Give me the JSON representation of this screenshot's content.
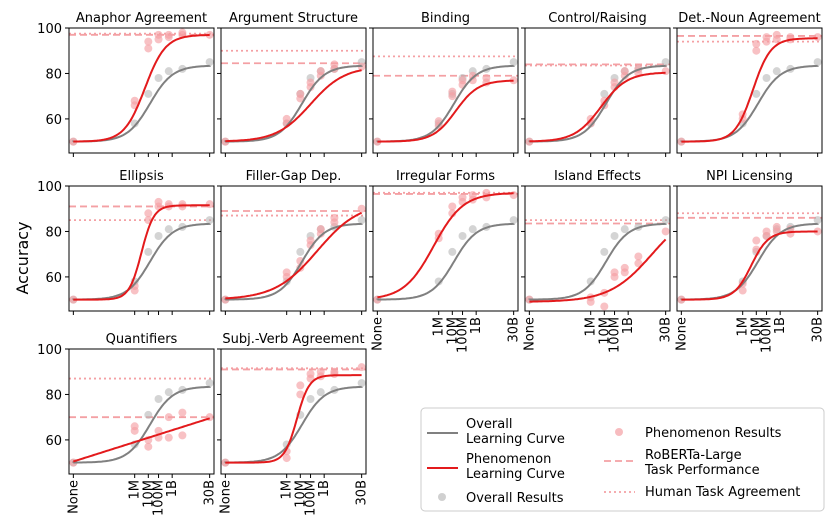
{
  "figure": {
    "ylabel": "Accuracy",
    "x_tick_labels": [
      "None",
      "1M",
      "10M",
      "100M",
      "1B",
      "30B"
    ],
    "y_tick_labels": [
      "60",
      "80",
      "100"
    ]
  },
  "legend": {
    "overall_curve": "Overall\nLearning Curve",
    "phenomenon_curve": "Phenomenon\nLearning Curve",
    "overall_results": "Overall Results",
    "phenomenon_results": "Phenomenon Results",
    "roberta": "RoBERTa-Large\nTask Performance",
    "human": "Human Task Agreement"
  },
  "colors": {
    "overall": "#808080",
    "phenomenon": "#e31a1c",
    "phenomenon_points": "#f4a0a4",
    "overall_points": "#b0b0b0",
    "roberta": "#f4a0a4",
    "human": "#f4a0a4"
  },
  "chart_data": [
    {
      "type": "line",
      "title": "Anaphor Agreement",
      "ylim": [
        45,
        100
      ],
      "x": [
        "None",
        "1M",
        "10M",
        "100M",
        "1B",
        "30B"
      ],
      "series": [
        {
          "name": "Phenomenon Learning Curve",
          "kind": "sigmoid",
          "low": 50,
          "high": 97,
          "mid": 2.1,
          "k": 3.3
        },
        {
          "name": "Phenomenon Results",
          "points": [
            [
              1.8,
              66
            ],
            [
              1.8,
              68
            ],
            [
              2.2,
              91
            ],
            [
              2.2,
              94
            ],
            [
              2.5,
              95
            ],
            [
              2.5,
              97
            ],
            [
              2.8,
              96
            ],
            [
              2.8,
              97
            ],
            [
              3.2,
              97
            ],
            [
              3.2,
              98
            ],
            [
              4,
              97
            ],
            [
              0,
              50
            ]
          ]
        }
      ],
      "roberta": 97,
      "human": 97.5,
      "xtick_labels_visible": false
    },
    {
      "type": "line",
      "title": "Argument Structure",
      "ylim": [
        45,
        100
      ],
      "x": [
        "None",
        "1M",
        "10M",
        "100M",
        "1B",
        "30B"
      ],
      "series": [
        {
          "name": "Phenomenon Learning Curve",
          "kind": "sigmoid",
          "low": 50,
          "high": 83,
          "mid": 2.5,
          "k": 2.0
        },
        {
          "name": "Phenomenon Results",
          "points": [
            [
              1.8,
              58
            ],
            [
              1.8,
              60
            ],
            [
              2.2,
              69
            ],
            [
              2.2,
              71
            ],
            [
              2.5,
              74
            ],
            [
              2.5,
              76
            ],
            [
              2.8,
              79
            ],
            [
              2.8,
              81
            ],
            [
              3.2,
              82
            ],
            [
              3.2,
              84
            ],
            [
              4,
              83
            ],
            [
              0,
              50
            ]
          ]
        }
      ],
      "roberta": 84.5,
      "human": 90,
      "xtick_labels_visible": false
    },
    {
      "type": "line",
      "title": "Binding",
      "ylim": [
        45,
        100
      ],
      "x": [
        "None",
        "1M",
        "10M",
        "100M",
        "1B",
        "30B"
      ],
      "series": [
        {
          "name": "Phenomenon Learning Curve",
          "kind": "sigmoid",
          "low": 50,
          "high": 77,
          "mid": 2.3,
          "k": 3.0
        },
        {
          "name": "Phenomenon Results",
          "points": [
            [
              1.8,
              57
            ],
            [
              1.8,
              59
            ],
            [
              2.2,
              70
            ],
            [
              2.2,
              72
            ],
            [
              2.5,
              75
            ],
            [
              2.5,
              77
            ],
            [
              2.8,
              77
            ],
            [
              2.8,
              79
            ],
            [
              3.2,
              76
            ],
            [
              3.2,
              78
            ],
            [
              4,
              77
            ],
            [
              0,
              50
            ]
          ]
        }
      ],
      "roberta": 79,
      "human": 87.5,
      "xtick_labels_visible": false
    },
    {
      "type": "line",
      "title": "Control/Raising",
      "ylim": [
        45,
        100
      ],
      "x": [
        "None",
        "1M",
        "10M",
        "100M",
        "1B",
        "30B"
      ],
      "series": [
        {
          "name": "Phenomenon Learning Curve",
          "kind": "sigmoid",
          "low": 50,
          "high": 80.5,
          "mid": 2.1,
          "k": 2.6
        },
        {
          "name": "Phenomenon Results",
          "points": [
            [
              1.8,
              58
            ],
            [
              1.8,
              60
            ],
            [
              2.2,
              66
            ],
            [
              2.2,
              68
            ],
            [
              2.5,
              74
            ],
            [
              2.5,
              76
            ],
            [
              2.8,
              79
            ],
            [
              2.8,
              81
            ],
            [
              3.2,
              80
            ],
            [
              3.2,
              82
            ],
            [
              4,
              81
            ],
            [
              0,
              50
            ]
          ]
        }
      ],
      "roberta": 84,
      "human": 83.5,
      "xtick_labels_visible": false
    },
    {
      "type": "line",
      "title": "Det.-Noun Agreement",
      "ylim": [
        45,
        100
      ],
      "x": [
        "None",
        "1M",
        "10M",
        "100M",
        "1B",
        "30B"
      ],
      "series": [
        {
          "name": "Phenomenon Learning Curve",
          "kind": "sigmoid",
          "low": 50,
          "high": 95.5,
          "mid": 2.1,
          "k": 3.8
        },
        {
          "name": "Phenomenon Results",
          "points": [
            [
              1.8,
              60
            ],
            [
              1.8,
              62
            ],
            [
              2.2,
              90
            ],
            [
              2.2,
              93
            ],
            [
              2.5,
              94
            ],
            [
              2.5,
              96
            ],
            [
              2.8,
              95
            ],
            [
              2.8,
              97
            ],
            [
              3.2,
              95
            ],
            [
              3.2,
              96
            ],
            [
              4,
              96
            ],
            [
              0,
              50
            ]
          ]
        }
      ],
      "roberta": 96.5,
      "human": 94,
      "xtick_labels_visible": false
    },
    {
      "type": "line",
      "title": "Ellipsis",
      "ylim": [
        45,
        100
      ],
      "x": [
        "None",
        "1M",
        "10M",
        "100M",
        "1B",
        "30B"
      ],
      "series": [
        {
          "name": "Phenomenon Learning Curve",
          "kind": "sigmoid",
          "low": 50,
          "high": 91.5,
          "mid": 2.0,
          "k": 5.5
        },
        {
          "name": "Phenomenon Results",
          "points": [
            [
              1.8,
              54
            ],
            [
              1.8,
              56
            ],
            [
              2.2,
              85
            ],
            [
              2.2,
              88
            ],
            [
              2.5,
              91
            ],
            [
              2.5,
              93
            ],
            [
              2.8,
              91
            ],
            [
              2.8,
              92
            ],
            [
              3.2,
              91
            ],
            [
              3.2,
              92
            ],
            [
              4,
              92
            ],
            [
              0,
              50
            ]
          ]
        }
      ],
      "roberta": 91,
      "human": 85,
      "xtick_labels_visible": false
    },
    {
      "type": "line",
      "title": "Filler-Gap Dep.",
      "ylim": [
        45,
        100
      ],
      "x": [
        "None",
        "1M",
        "10M",
        "100M",
        "1B",
        "30B"
      ],
      "series": [
        {
          "name": "Phenomenon Learning Curve",
          "kind": "sigmoid",
          "low": 50,
          "high": 93,
          "mid": 2.7,
          "k": 1.6
        },
        {
          "name": "Phenomenon Results",
          "points": [
            [
              1.8,
              60
            ],
            [
              1.8,
              62
            ],
            [
              2.2,
              64
            ],
            [
              2.2,
              67
            ],
            [
              2.5,
              74
            ],
            [
              2.5,
              76
            ],
            [
              2.8,
              79
            ],
            [
              2.8,
              81
            ],
            [
              3.2,
              84
            ],
            [
              3.2,
              86
            ],
            [
              4,
              90
            ],
            [
              0,
              50
            ]
          ]
        }
      ],
      "roberta": 89,
      "human": 87,
      "xtick_labels_visible": false
    },
    {
      "type": "line",
      "title": "Irregular Forms",
      "ylim": [
        45,
        100
      ],
      "x": [
        "None",
        "1M",
        "10M",
        "100M",
        "1B",
        "30B"
      ],
      "series": [
        {
          "name": "Phenomenon Learning Curve",
          "kind": "sigmoid",
          "low": 50,
          "high": 97,
          "mid": 1.65,
          "k": 2.3
        },
        {
          "name": "Phenomenon Results",
          "points": [
            [
              1.8,
              77
            ],
            [
              1.8,
              79
            ],
            [
              2.2,
              88
            ],
            [
              2.2,
              91
            ],
            [
              2.5,
              93
            ],
            [
              2.5,
              95
            ],
            [
              2.8,
              94
            ],
            [
              2.8,
              96
            ],
            [
              3.2,
              95
            ],
            [
              3.2,
              97
            ],
            [
              4,
              96
            ],
            [
              0,
              50
            ]
          ]
        }
      ],
      "roberta": 96.5,
      "human": 97,
      "xtick_labels_visible": true
    },
    {
      "type": "line",
      "title": "Island Effects",
      "ylim": [
        45,
        100
      ],
      "x": [
        "None",
        "1M",
        "10M",
        "100M",
        "1B",
        "30B"
      ],
      "series": [
        {
          "name": "Phenomenon Learning Curve",
          "kind": "sigmoid",
          "low": 49,
          "high": 91,
          "mid": 3.6,
          "k": 1.6
        },
        {
          "name": "Phenomenon Results",
          "points": [
            [
              1.8,
              49
            ],
            [
              1.8,
              51
            ],
            [
              2.2,
              47
            ],
            [
              2.2,
              53
            ],
            [
              2.5,
              60
            ],
            [
              2.5,
              62
            ],
            [
              2.8,
              62
            ],
            [
              2.8,
              64
            ],
            [
              3.2,
              66
            ],
            [
              3.2,
              69
            ],
            [
              4,
              80
            ],
            [
              0,
              50
            ]
          ]
        }
      ],
      "roberta": 83.5,
      "human": 85,
      "xtick_labels_visible": true
    },
    {
      "type": "line",
      "title": "NPI Licensing",
      "ylim": [
        45,
        100
      ],
      "x": [
        "None",
        "1M",
        "10M",
        "100M",
        "1B",
        "30B"
      ],
      "series": [
        {
          "name": "Phenomenon Learning Curve",
          "kind": "sigmoid",
          "low": 50,
          "high": 80,
          "mid": 2.05,
          "k": 4.0
        },
        {
          "name": "Phenomenon Results",
          "points": [
            [
              1.8,
              54
            ],
            [
              1.8,
              57
            ],
            [
              2.2,
              72
            ],
            [
              2.2,
              76
            ],
            [
              2.5,
              78
            ],
            [
              2.5,
              80
            ],
            [
              2.8,
              80
            ],
            [
              2.8,
              82
            ],
            [
              3.2,
              79
            ],
            [
              3.2,
              81
            ],
            [
              4,
              80
            ],
            [
              0,
              50
            ]
          ]
        }
      ],
      "roberta": 86,
      "human": 88,
      "xtick_labels_visible": true
    },
    {
      "type": "line",
      "title": "Quantifiers",
      "ylim": [
        45,
        100
      ],
      "x": [
        "None",
        "1M",
        "10M",
        "100M",
        "1B",
        "30B"
      ],
      "series": [
        {
          "name": "Phenomenon Learning Curve",
          "kind": "linear",
          "y0": 50.5,
          "y1": 69.5
        },
        {
          "name": "Phenomenon Results",
          "points": [
            [
              1.8,
              64
            ],
            [
              1.8,
              66
            ],
            [
              2.2,
              57
            ],
            [
              2.2,
              60
            ],
            [
              2.5,
              61
            ],
            [
              2.5,
              64
            ],
            [
              2.8,
              61
            ],
            [
              2.8,
              70
            ],
            [
              3.2,
              62
            ],
            [
              3.2,
              72
            ],
            [
              4,
              70
            ],
            [
              0,
              50
            ]
          ]
        }
      ],
      "roberta": 70,
      "human": 87,
      "xtick_labels_visible": true
    },
    {
      "type": "line",
      "title": "Subj.-Verb Agreement",
      "ylim": [
        45,
        100
      ],
      "x": [
        "None",
        "1M",
        "10M",
        "100M",
        "1B",
        "30B"
      ],
      "series": [
        {
          "name": "Phenomenon Learning Curve",
          "kind": "sigmoid",
          "low": 50,
          "high": 88.5,
          "mid": 2.1,
          "k": 5.5
        },
        {
          "name": "Phenomenon Results",
          "points": [
            [
              1.8,
              52
            ],
            [
              1.8,
              55
            ],
            [
              2.2,
              80
            ],
            [
              2.2,
              84
            ],
            [
              2.5,
              87
            ],
            [
              2.5,
              89
            ],
            [
              2.8,
              88
            ],
            [
              2.8,
              90
            ],
            [
              3.2,
              89
            ],
            [
              3.2,
              90
            ],
            [
              4,
              92
            ],
            [
              0,
              50
            ]
          ]
        }
      ],
      "roberta": 91,
      "human": 91.5,
      "xtick_labels_visible": true
    }
  ],
  "overall": {
    "curve": {
      "low": 50,
      "high": 83.5,
      "mid": 2.25,
      "k": 3.0
    },
    "points": [
      [
        1.8,
        58
      ],
      [
        2.2,
        71
      ],
      [
        2.5,
        78
      ],
      [
        2.8,
        81
      ],
      [
        3.2,
        82
      ],
      [
        4,
        85
      ],
      [
        0,
        50
      ]
    ]
  }
}
